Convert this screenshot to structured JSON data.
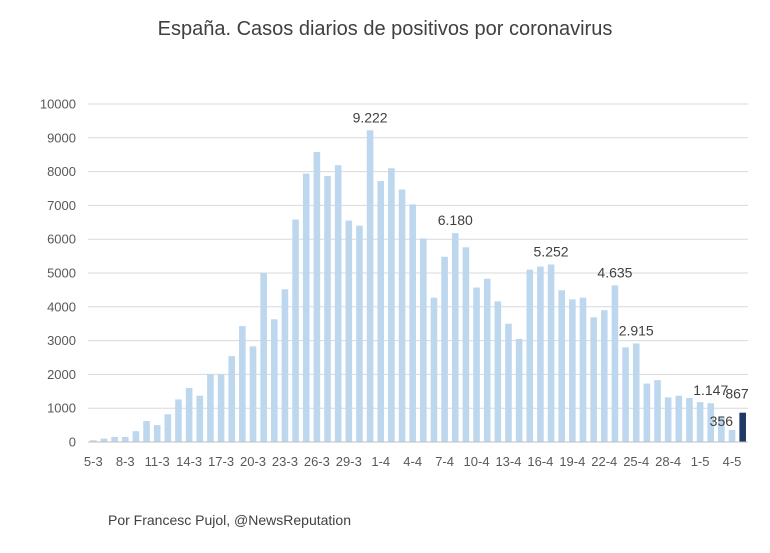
{
  "chart_data": {
    "type": "bar",
    "title": "España. Casos diarios de positivos por coronavirus",
    "xlabel": "",
    "ylabel": "",
    "ylim": [
      0,
      10000
    ],
    "yticks": [
      0,
      1000,
      2000,
      3000,
      4000,
      5000,
      6000,
      7000,
      8000,
      9000,
      10000
    ],
    "grid": true,
    "colors": {
      "bar": "#bdd7ee",
      "highlight": "#1f3864",
      "grid": "#d9d9d9",
      "axis": "#bfbfbf"
    },
    "categories": [
      "5-3",
      "6-3",
      "7-3",
      "8-3",
      "9-3",
      "10-3",
      "11-3",
      "12-3",
      "13-3",
      "14-3",
      "15-3",
      "16-3",
      "17-3",
      "18-3",
      "19-3",
      "20-3",
      "21-3",
      "22-3",
      "23-3",
      "24-3",
      "25-3",
      "26-3",
      "27-3",
      "28-3",
      "29-3",
      "30-3",
      "31-3",
      "1-4",
      "2-4",
      "3-4",
      "4-4",
      "5-4",
      "6-4",
      "7-4",
      "8-4",
      "9-4",
      "10-4",
      "11-4",
      "12-4",
      "13-4",
      "14-4",
      "15-4",
      "16-4",
      "17-4",
      "18-4",
      "19-4",
      "20-4",
      "21-4",
      "22-4",
      "23-4",
      "24-4",
      "25-4",
      "26-4",
      "27-4",
      "28-4",
      "29-4",
      "30-4",
      "1-5",
      "2-5",
      "3-5",
      "4-5",
      "5-5"
    ],
    "tick_labels": [
      "5-3",
      "8-3",
      "11-3",
      "14-3",
      "17-3",
      "20-3",
      "23-3",
      "26-3",
      "29-3",
      "1-4",
      "4-4",
      "7-4",
      "10-4",
      "13-4",
      "16-4",
      "19-4",
      "22-4",
      "25-4",
      "28-4",
      "1-5",
      "4-5"
    ],
    "values": [
      50,
      100,
      150,
      150,
      320,
      620,
      500,
      820,
      1260,
      1600,
      1370,
      2000,
      2000,
      2540,
      3430,
      2830,
      5000,
      3630,
      4520,
      6580,
      7940,
      8580,
      7870,
      8190,
      6550,
      6400,
      9222,
      7720,
      8100,
      7470,
      7030,
      6020,
      4270,
      5480,
      6180,
      5760,
      4570,
      4830,
      4160,
      3500,
      3050,
      5100,
      5190,
      5252,
      4490,
      4220,
      4270,
      3690,
      3900,
      4635,
      2800,
      2915,
      1730,
      1830,
      1320,
      1370,
      1300,
      1180,
      1147,
      760,
      356,
      867
    ],
    "highlight_index": 61,
    "data_labels": [
      {
        "index": 26,
        "text": "9.222"
      },
      {
        "index": 34,
        "text": "6.180"
      },
      {
        "index": 43,
        "text": "5.252"
      },
      {
        "index": 49,
        "text": "4.635"
      },
      {
        "index": 51,
        "text": "2.915"
      },
      {
        "index": 58,
        "text": "1.147"
      },
      {
        "index": 60,
        "text": "356"
      },
      {
        "index": 61,
        "text": "867"
      }
    ]
  },
  "footer": "Por Francesc Pujol, @NewsReputation"
}
